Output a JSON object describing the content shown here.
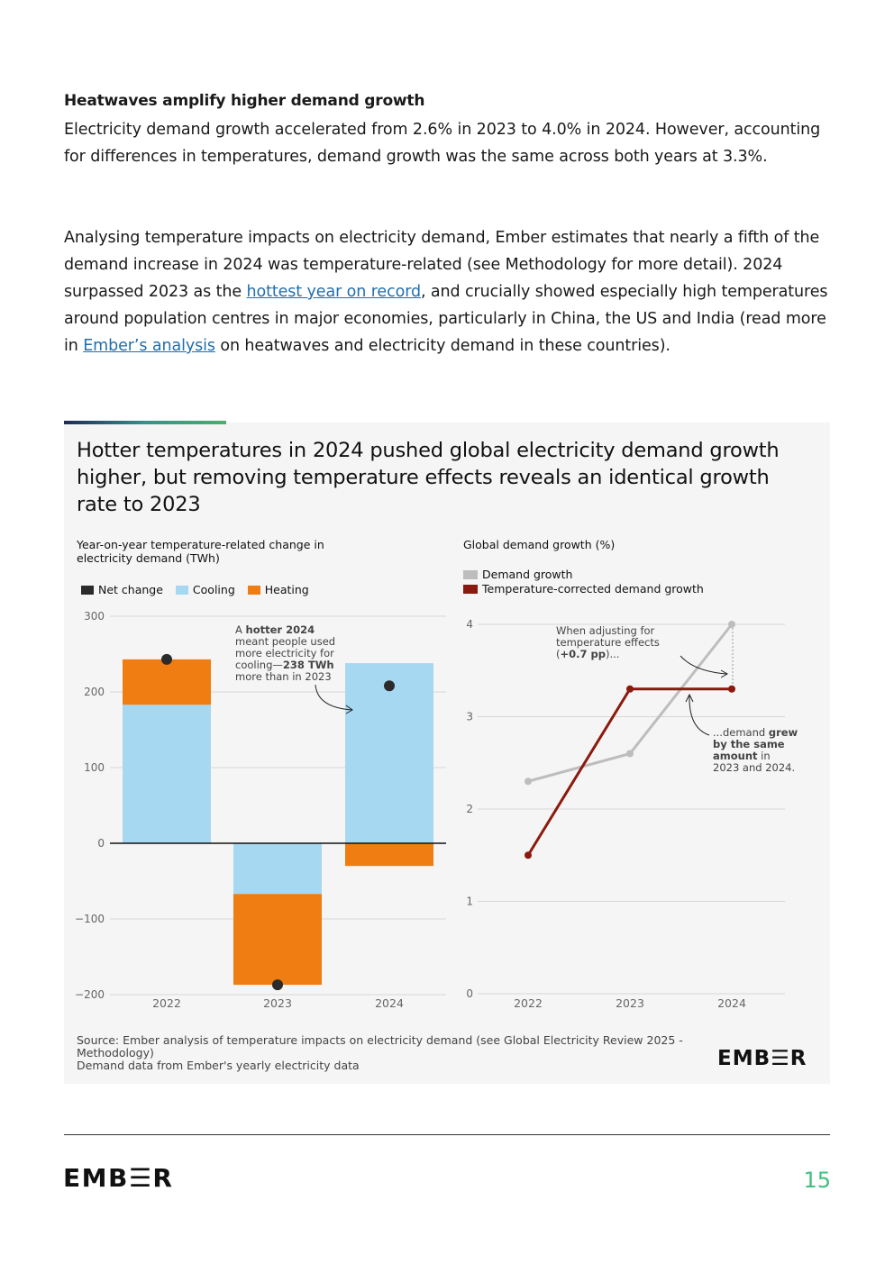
{
  "body": {
    "heading": "Heatwaves amplify higher demand growth",
    "p1": "Electricity demand growth accelerated from 2.6% in 2023 to 4.0% in 2024. However, accounting for differences in temperatures, demand growth was the same across both years at 3.3%.",
    "p2_part1": "Analysing temperature impacts on electricity demand, Ember estimates that nearly a fifth of the demand increase in 2024 was temperature-related (see Methodology for more detail). 2024 surpassed 2023 as the ",
    "p2_link1": "hottest year on record",
    "p2_part2": ", and crucially showed especially high temperatures around population centres in major economies, particularly in China, the US and India (read more in ",
    "p2_link2": "Ember’s analysis",
    "p2_part3": " on heatwaves and electricity demand in these countries)."
  },
  "card": {
    "title": "Hotter temperatures in 2024 pushed global electricity demand growth higher, but removing temperature effects reveals an identical growth rate to 2023",
    "source_line1": "Source: Ember analysis of temperature impacts on electricity demand (see Global Electricity Review 2025 - Methodology)",
    "source_line2": "Demand data from Ember's yearly electricity data",
    "logo": "EMB☰R"
  },
  "colors": {
    "net": "#2b2b2b",
    "cooling": "#a7d8f2",
    "heating": "#ef7d12",
    "demand_growth": "#bdbdbd",
    "corrected": "#8b1a0e",
    "accent_green": "#3fbf7f"
  },
  "chart_data": [
    {
      "type": "bar",
      "title": "Year-on-year temperature-related change in electricity demand (TWh)",
      "categories": [
        "2022",
        "2023",
        "2024"
      ],
      "series": [
        {
          "name": "Net change",
          "values": [
            243,
            -187,
            208
          ]
        },
        {
          "name": "Cooling",
          "values": [
            183,
            -67,
            238
          ]
        },
        {
          "name": "Heating",
          "values": [
            60,
            -120,
            -30
          ]
        }
      ],
      "ylim": [
        -200,
        300
      ],
      "yticks": [
        300,
        200,
        100,
        0,
        -100,
        -200
      ],
      "ytick_labels": [
        "300",
        "200",
        "100",
        "0",
        "−100",
        "−200"
      ],
      "annotation": {
        "pre": "A ",
        "bold1": "hotter 2024",
        "mid": " meant people used more electricity for cooling—",
        "bold2": "238 TWh",
        "post": " more than in 2023"
      }
    },
    {
      "type": "line",
      "title": "Global demand growth (%)",
      "x": [
        "2022",
        "2023",
        "2024"
      ],
      "series": [
        {
          "name": "Demand growth",
          "values": [
            2.3,
            2.6,
            4.0
          ]
        },
        {
          "name": "Temperature-corrected demand growth",
          "values": [
            1.5,
            3.3,
            3.3
          ]
        }
      ],
      "ylim": [
        0,
        4
      ],
      "yticks": [
        4,
        3,
        2,
        1,
        0
      ],
      "annotations": {
        "a1_line1": "When adjusting for",
        "a1_line2": "temperature effects",
        "a1_bold": "+0.7 pp",
        "a2_pre": "...demand ",
        "a2_bold1": "grew",
        "a2_bold2": "by the same",
        "a2_bold3": "amount",
        "a2_post1": " in",
        "a2_post2": "2023 and 2024."
      }
    }
  ],
  "footer": {
    "logo": "EMB☰R",
    "page_number": "15"
  }
}
